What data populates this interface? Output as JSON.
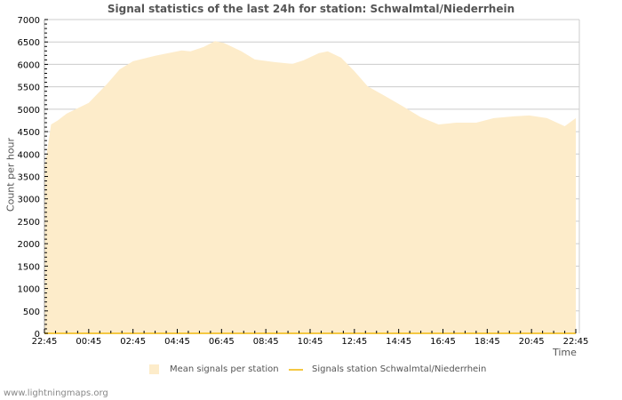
{
  "title": "Signal statistics of the last 24h for station: Schwalmtal/Niederrhein",
  "footer": "www.lightningmaps.org",
  "legend": {
    "mean": "Mean signals per station",
    "station": "Signals station Schwalmtal/Niederrhein"
  },
  "colors": {
    "fill": "#fdecca",
    "line": "#f5c842",
    "grid": "#cccccc"
  },
  "chart_data": {
    "type": "area",
    "title": "Signal statistics of the last 24h for station: Schwalmtal/Niederrhein",
    "xlabel": "Time",
    "ylabel": "Count per hour",
    "ylim": [
      0,
      7000
    ],
    "yticks": [
      0,
      500,
      1000,
      1500,
      2000,
      2500,
      3000,
      3500,
      4000,
      4500,
      5000,
      5500,
      6000,
      6500,
      7000
    ],
    "xticks": [
      "22:45",
      "00:45",
      "02:45",
      "04:45",
      "06:45",
      "08:45",
      "10:45",
      "12:45",
      "14:45",
      "16:45",
      "18:45",
      "20:45",
      "22:45"
    ],
    "grid": true,
    "legend_position": "bottom",
    "series": [
      {
        "name": "Mean signals per station",
        "type": "area",
        "x_hours_from_start": [
          0,
          0.3,
          0.6,
          1.0,
          2.0,
          2.8,
          3.4,
          4.0,
          5.0,
          5.6,
          6.2,
          6.6,
          7.2,
          7.7,
          8.1,
          8.9,
          9.5,
          10.4,
          11.2,
          11.7,
          12.4,
          12.8,
          13.4,
          14.0,
          14.6,
          15.4,
          16.2,
          17.0,
          17.8,
          18.6,
          19.5,
          20.3,
          21.2,
          21.9,
          22.7,
          23.5,
          24.0
        ],
        "values": [
          3670,
          4660,
          4750,
          4900,
          5140,
          5550,
          5890,
          6070,
          6190,
          6250,
          6310,
          6290,
          6390,
          6520,
          6480,
          6290,
          6110,
          6050,
          6010,
          6090,
          6250,
          6290,
          6150,
          5850,
          5510,
          5290,
          5060,
          4820,
          4660,
          4700,
          4700,
          4800,
          4840,
          4860,
          4800,
          4620,
          4800
        ]
      },
      {
        "name": "Signals station Schwalmtal/Niederrhein",
        "type": "line",
        "values": [
          0
        ]
      }
    ]
  }
}
